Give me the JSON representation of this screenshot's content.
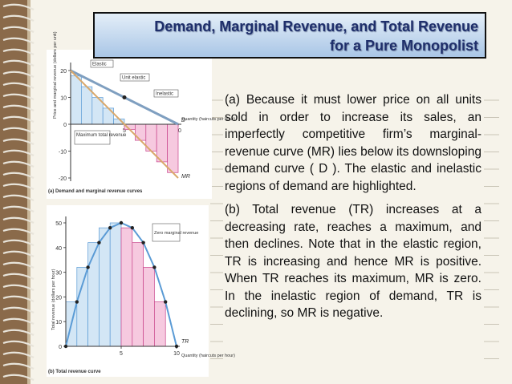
{
  "title": [
    "Demand, Marginal Revenue, and Total Revenue",
    "for a Pure Monopolist"
  ],
  "paragraphs": [
    "(a) Because it must lower price on all units sold in order to increase its sales, an imperfectly competitive firm’s marginal-revenue curve (MR) lies below its downsloping demand curve ( D ). The elastic and inelastic regions of demand are highlighted.",
    "(b) Total revenue (TR) increases at a decreasing rate, reaches a maximum, and then declines. Note that in the elastic region, TR is increasing and hence MR is positive. When TR reaches its maximum, MR is zero. In the inelastic region of demand, TR is declining, so MR is negative."
  ],
  "figures": [
    {
      "type": "bar",
      "caption": "(a) Demand and marginal revenue curves",
      "y_label": "Price and marginal revenue (dollars per unit)",
      "x_label": "Quantity (haircuts per hour)",
      "xlim": [
        0,
        10
      ],
      "ylim": [
        -20,
        20
      ],
      "yticks": [
        -20,
        -10,
        0,
        10,
        20
      ],
      "xticks": [
        5,
        10
      ],
      "bars": {
        "x": [
          1,
          2,
          3,
          4,
          5,
          6,
          7,
          8,
          9,
          10
        ],
        "values": [
          18,
          14,
          10,
          6,
          2,
          -2,
          -6,
          -10,
          -14,
          -18
        ]
      },
      "series": [
        {
          "name": "D",
          "color": "#7f9fc0",
          "x": [
            0,
            10
          ],
          "values": [
            20,
            0
          ]
        },
        {
          "name": "MR",
          "color": "#d9a86a",
          "x": [
            0,
            10
          ],
          "values": [
            20,
            -20
          ]
        }
      ],
      "annotations": [
        "Elastic",
        "Unit elastic",
        "Inelastic",
        "Maximum total revenue"
      ]
    },
    {
      "type": "line",
      "caption": "(b) Total revenue curve",
      "y_label": "Total revenue (dollars per hour)",
      "x_label": "Quantity (haircuts per hour)",
      "xlim": [
        0,
        10
      ],
      "ylim": [
        0,
        50
      ],
      "yticks": [
        0,
        10,
        20,
        30,
        40,
        50
      ],
      "xticks": [
        5,
        10
      ],
      "series": [
        {
          "name": "TR",
          "color": "#5b9bd5",
          "x": [
            0,
            1,
            2,
            3,
            4,
            5,
            6,
            7,
            8,
            9,
            10
          ],
          "values": [
            0,
            18,
            32,
            42,
            48,
            50,
            48,
            42,
            32,
            18,
            0
          ]
        }
      ],
      "annotations": [
        "Zero marginal revenue"
      ]
    }
  ]
}
